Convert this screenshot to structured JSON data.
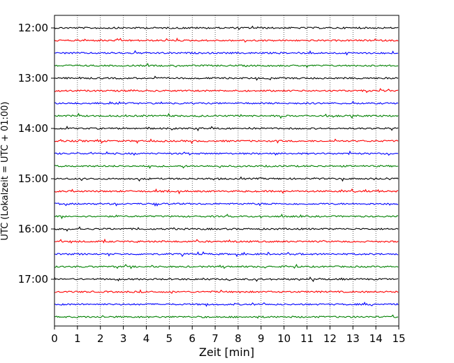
{
  "chart_data": {
    "type": "line",
    "title": "",
    "xlabel": "Zeit  [min]",
    "ylabel": "UTC (Lokalzeit = UTC + 01:00)",
    "xlim": [
      0,
      15
    ],
    "x_ticks": [
      0,
      1,
      2,
      3,
      4,
      5,
      6,
      7,
      8,
      9,
      10,
      11,
      12,
      13,
      14,
      15
    ],
    "y_tick_labels": [
      "12:00",
      "13:00",
      "14:00",
      "15:00",
      "16:00",
      "17:00"
    ],
    "traces_per_hour": 4,
    "trace_interval_min": 15,
    "start_time": "12:00",
    "trace_start_times": [
      "12:00",
      "12:15",
      "12:30",
      "12:45",
      "13:00",
      "13:15",
      "13:30",
      "13:45",
      "14:00",
      "14:15",
      "14:30",
      "14:45",
      "15:00",
      "15:15",
      "15:30",
      "15:45",
      "16:00",
      "16:15",
      "16:30",
      "16:45",
      "17:00",
      "17:15",
      "17:30",
      "17:45"
    ],
    "trace_colors": [
      "#000000",
      "#ff0000",
      "#0000ff",
      "#008000"
    ],
    "grid": {
      "x": true,
      "y": false,
      "style": "dotted"
    },
    "legend": "none"
  }
}
